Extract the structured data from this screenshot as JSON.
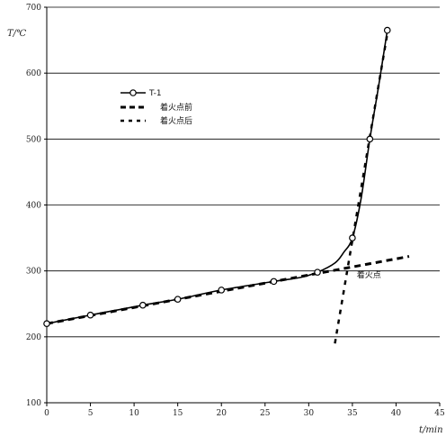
{
  "chart_data": {
    "type": "line",
    "xlabel": "t/min",
    "ylabel": "T/℃",
    "xlim": [
      0,
      45
    ],
    "ylim": [
      100,
      700
    ],
    "x_ticks": [
      0,
      5,
      10,
      15,
      20,
      25,
      30,
      35,
      40,
      45
    ],
    "y_ticks": [
      100,
      200,
      300,
      400,
      500,
      600,
      700
    ],
    "grid": "horizontal",
    "legend_position": "upper-left",
    "series": [
      {
        "name": "T-1",
        "style": "solid-line-circle-markers",
        "color": "#000000",
        "x": [
          0,
          5,
          11,
          15,
          20,
          26,
          31,
          35,
          37,
          39
        ],
        "y": [
          220,
          233,
          248,
          257,
          271,
          284,
          298,
          350,
          500,
          665
        ],
        "curve_x": [
          0,
          5,
          11,
          15,
          20,
          26,
          29,
          31,
          33,
          34,
          35,
          36,
          37,
          38,
          39
        ],
        "curve_y": [
          220,
          233,
          248,
          257,
          271,
          284,
          290,
          298,
          312,
          328,
          350,
          410,
          500,
          580,
          665
        ]
      },
      {
        "name": "着火点前",
        "style": "dashed-thick",
        "color": "#000000",
        "x": [
          0,
          41.5
        ],
        "y": [
          220,
          322
        ]
      },
      {
        "name": "着火点后",
        "style": "dashed",
        "color": "#000000",
        "x": [
          33,
          39
        ],
        "y": [
          190,
          660
        ]
      }
    ],
    "annotations": [
      {
        "text": "着火点",
        "x": 35.5,
        "y": 290
      }
    ]
  }
}
